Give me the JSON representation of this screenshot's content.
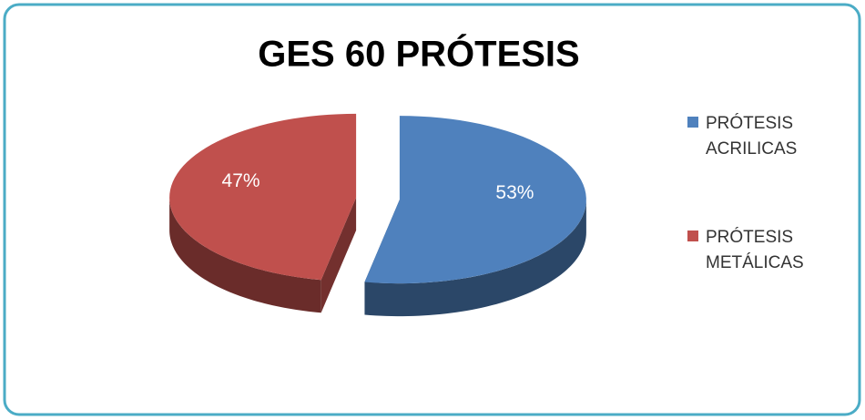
{
  "chart_data": {
    "type": "pie",
    "title": "GES 60 PRÓTESIS",
    "categories": [
      "PRÓTESIS ACRILICAS",
      "PRÓTESIS METÁLICAS"
    ],
    "values": [
      53,
      47
    ],
    "value_labels": [
      "53%",
      "47%"
    ],
    "colors": [
      "#4f81bd",
      "#c0504d"
    ],
    "legend": "right"
  }
}
